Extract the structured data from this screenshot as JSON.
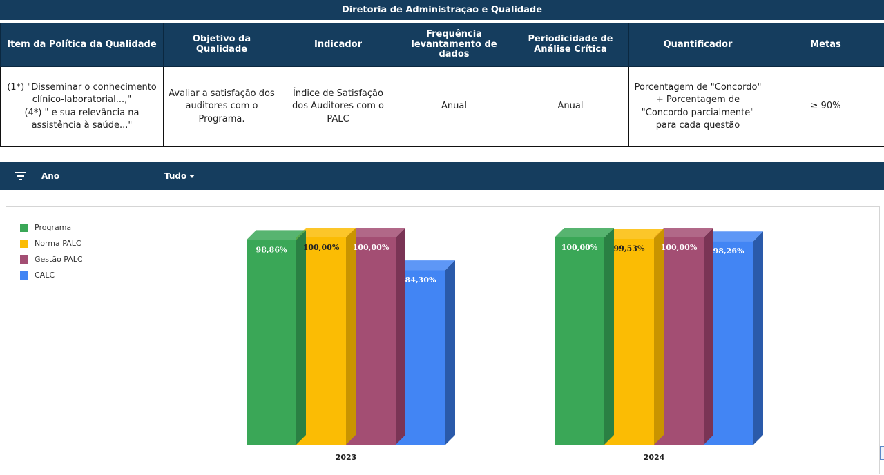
{
  "page": {
    "title": "Diretoria de Administração e Qualidade"
  },
  "table": {
    "headers": [
      "Item da Política da Qualidade",
      "Objetivo da Qualidade",
      "Indicador",
      "Frequência levantamento de dados",
      "Periodicidade de Análise Crítica",
      "Quantificador",
      "Metas"
    ],
    "row": [
      "(1*) \"Disseminar o conhecimento clínico-laboratorial...,\"\n(4*) \" e sua relevância na assistência à saúde...\"",
      "Avaliar a satisfação dos auditores com o Programa.",
      "Índice de Satisfação dos Auditores com o PALC",
      "Anual",
      "Anual",
      "Porcentagem de \"Concordo\" + Porcentagem de \"Concordo parcialmente\" para cada questão",
      "≥ 90%"
    ]
  },
  "filter": {
    "label": "Ano",
    "value": "Tudo",
    "icon": "filter-icon",
    "dropdown_icon": "caret-down-icon"
  },
  "chart_data": {
    "type": "bar",
    "categories": [
      "2023",
      "2024"
    ],
    "series": [
      {
        "name": "Programa",
        "values": [
          98.86,
          100.0
        ],
        "labels": [
          "98,86%",
          "100,00%"
        ],
        "color": "#3aa757",
        "side_color": "#2a8043"
      },
      {
        "name": "Norma PALC",
        "values": [
          100.0,
          99.53
        ],
        "labels": [
          "100,00%",
          "99,53%"
        ],
        "color": "#fbbc04",
        "side_color": "#c99400"
      },
      {
        "name": "Gestão PALC",
        "values": [
          100.0,
          100.0
        ],
        "labels": [
          "100,00%",
          "100,00%"
        ],
        "color": "#a34e73",
        "side_color": "#7a3455"
      },
      {
        "name": "CALC",
        "values": [
          84.3,
          98.26
        ],
        "labels": [
          "84,30%",
          "98,26%"
        ],
        "color": "#4285f4",
        "side_color": "#2a5aaa"
      }
    ],
    "ylim": [
      0,
      100
    ],
    "legend_position": "top-left"
  }
}
